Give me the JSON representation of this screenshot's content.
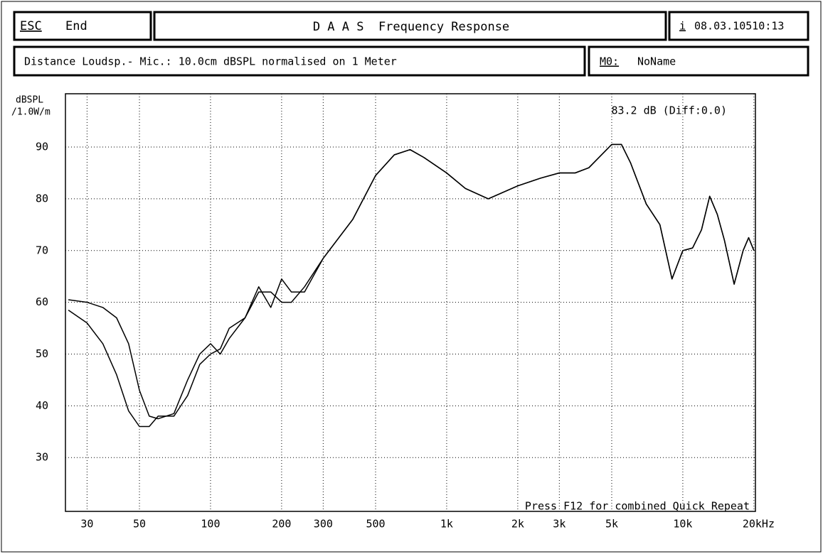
{
  "header": {
    "esc": "ESC",
    "end": "End",
    "title": "D A A S  Frequency Response",
    "info_key": "i",
    "date": "08.03.10510:13",
    "info": "Distance Loudsp.- Mic.: 10.0cm dBSPL normalised on 1 Meter",
    "model_key": "M0:",
    "model": "NoName"
  },
  "chart_data": {
    "type": "line",
    "y_label": [
      "dBSPL",
      "/1.0W/m"
    ],
    "annotation": "83.2 dB (Diff:0.0)",
    "footer": "Press F12 for combined Quick Repeat",
    "xscale": "log",
    "grid": true,
    "xlim": [
      24.3,
      20300
    ],
    "ylim": [
      19.6,
      100.3
    ],
    "xticks": [
      30,
      50,
      100,
      200,
      300,
      500,
      {
        "value": 1000,
        "label": "1k"
      },
      {
        "value": 2000,
        "label": "2k"
      },
      {
        "value": 3000,
        "label": "3k"
      },
      {
        "value": 5000,
        "label": "5k"
      },
      {
        "value": 10000,
        "label": "10k"
      },
      {
        "value": 20000,
        "label": "20kHz"
      }
    ],
    "yticks": [
      30,
      40,
      50,
      60,
      70,
      80,
      90
    ],
    "x": [
      25,
      30,
      35,
      40,
      45,
      50,
      55,
      60,
      70,
      80,
      90,
      100,
      110,
      120,
      140,
      160,
      180,
      200,
      220,
      250,
      300,
      400,
      500,
      600,
      700,
      800,
      1000,
      1200,
      1500,
      2000,
      2500,
      3000,
      3500,
      4000,
      5000,
      5500,
      6000,
      7000,
      8000,
      9000,
      10000,
      11000,
      12000,
      13000,
      14000,
      15000,
      16500,
      18000,
      19000,
      20000
    ],
    "series": [
      {
        "color": "#000000",
        "values": [
          60.5,
          60,
          59,
          57,
          52,
          43,
          38,
          37.5,
          38.5,
          45,
          50,
          52,
          50,
          53,
          57,
          62,
          62,
          60,
          60,
          63,
          68.5,
          76,
          84.5,
          88.5,
          89.5,
          88,
          85,
          82,
          80,
          82.5,
          84,
          85,
          85,
          86,
          90.5,
          90.5,
          87,
          79,
          75,
          64.5,
          70,
          70.5,
          74,
          80.5,
          77,
          72,
          63.5,
          70,
          72.5,
          70
        ]
      },
      {
        "color": "#000000",
        "values": [
          58.5,
          56,
          52,
          46,
          39,
          36,
          36,
          38,
          38,
          42,
          48,
          50,
          51,
          55,
          57,
          63,
          59,
          64.5,
          62,
          62,
          68.5,
          76,
          84.5,
          88.5,
          89.5,
          88,
          85,
          82,
          80,
          82.5,
          84,
          85,
          85,
          86,
          90.5,
          90.5,
          87,
          79,
          75,
          64.5,
          70,
          70.5,
          74,
          80.5,
          77,
          72,
          63.5,
          70,
          72.5,
          70
        ]
      }
    ]
  }
}
